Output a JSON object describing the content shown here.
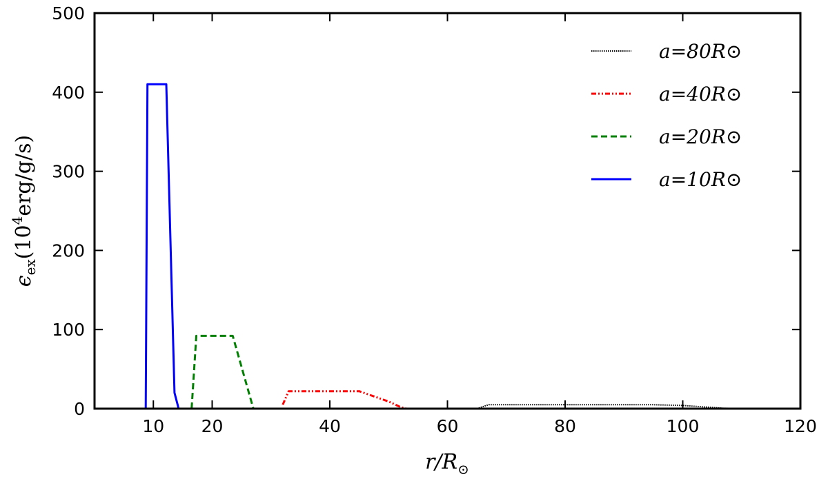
{
  "chart_data": {
    "type": "line",
    "xlabel": "r/R⊙",
    "ylabel": "ϵex(10⁴erg/g/s)",
    "xlim": [
      0,
      120
    ],
    "ylim": [
      0,
      500
    ],
    "xticks": [
      10,
      20,
      40,
      60,
      80,
      100,
      120
    ],
    "yticks": [
      0,
      100,
      200,
      300,
      400,
      500
    ],
    "grid": false,
    "legend_position": "top-right",
    "series": [
      {
        "name": "a=80R⊙",
        "color": "#000000",
        "style": "dotted",
        "points": [
          [
            65,
            0
          ],
          [
            67,
            5
          ],
          [
            80,
            5
          ],
          [
            95,
            5
          ],
          [
            100,
            4
          ],
          [
            104,
            2
          ],
          [
            107,
            0.5
          ],
          [
            115,
            0
          ]
        ]
      },
      {
        "name": "a=40R⊙",
        "color": "#ff0000",
        "style": "dash-dot-dot",
        "points": [
          [
            32,
            5
          ],
          [
            33,
            22
          ],
          [
            45,
            22
          ],
          [
            50,
            9
          ],
          [
            52,
            2
          ],
          [
            53,
            0
          ]
        ]
      },
      {
        "name": "a=20R⊙",
        "color": "#008000",
        "style": "dashed",
        "points": [
          [
            16.5,
            0
          ],
          [
            17.3,
            92
          ],
          [
            23.5,
            92
          ],
          [
            27,
            0
          ]
        ]
      },
      {
        "name": "a=10R⊙",
        "color": "#0000ff",
        "style": "solid",
        "points": [
          [
            8.7,
            0
          ],
          [
            9,
            410
          ],
          [
            12.2,
            410
          ],
          [
            13.6,
            20
          ],
          [
            14.3,
            0
          ]
        ]
      }
    ]
  }
}
